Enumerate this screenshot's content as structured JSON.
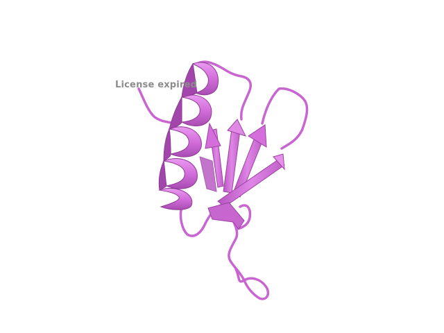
{
  "viewer": {
    "label": "License expired",
    "structure_color": "#d36edb",
    "background": "#ffffff"
  }
}
